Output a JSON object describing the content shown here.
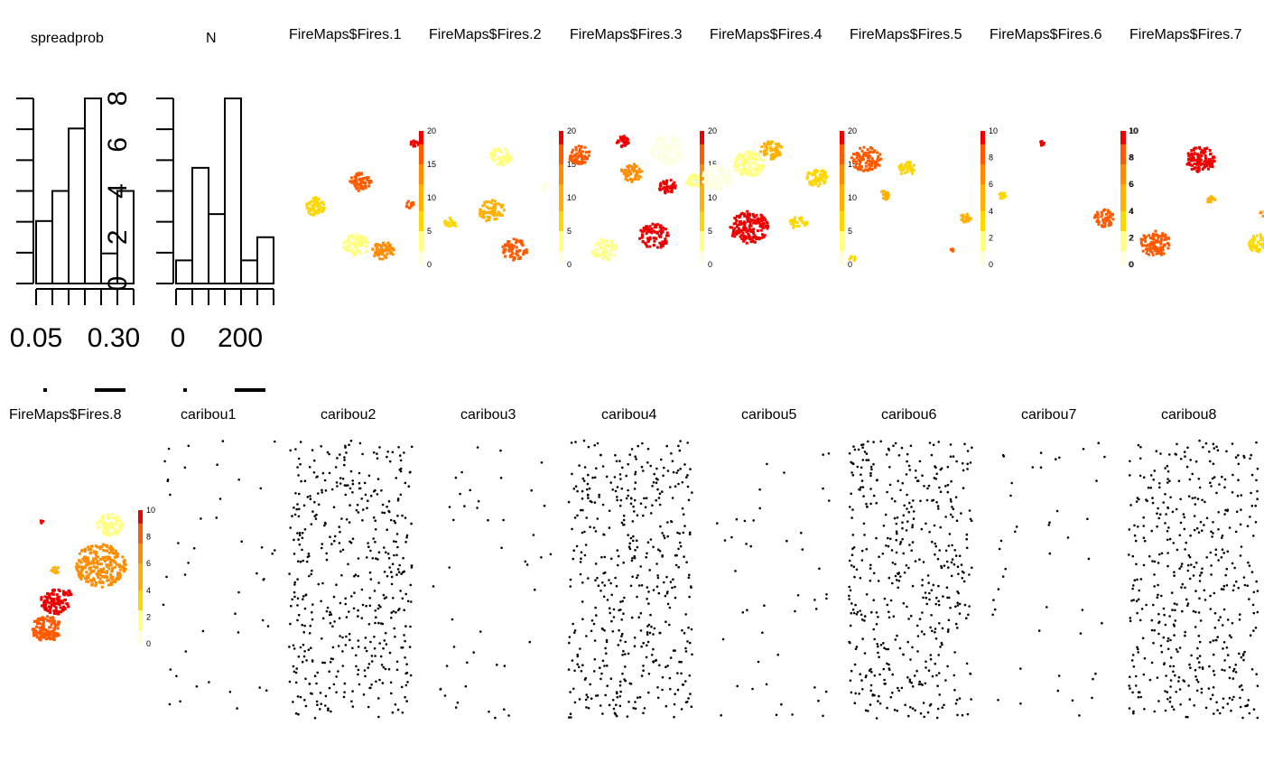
{
  "chart_data": [
    {
      "type": "bar",
      "title": "spreadprob",
      "xticks": [
        "0.05",
        "0.30"
      ],
      "yticks": [
        "0",
        "2",
        "4",
        "6",
        "8"
      ],
      "ylim": [
        0,
        8
      ],
      "values": [
        2.7,
        4,
        6.7,
        8,
        1.3,
        4
      ]
    },
    {
      "type": "bar",
      "title": "N",
      "xticks": [
        "0",
        "200"
      ],
      "yticks": [
        "0",
        "2",
        "4",
        "6",
        "8"
      ],
      "ylim": [
        0,
        8
      ],
      "values": [
        1,
        5,
        3,
        8,
        1,
        2
      ]
    },
    {
      "type": "heatmap",
      "title": "FireMaps$Fires.1",
      "legend_ticks": [
        "0",
        "5",
        "10",
        "15",
        "20"
      ]
    },
    {
      "type": "heatmap",
      "title": "FireMaps$Fires.2",
      "legend_ticks": [
        "0",
        "5",
        "10",
        "15",
        "20"
      ]
    },
    {
      "type": "heatmap",
      "title": "FireMaps$Fires.3",
      "legend_ticks": [
        "0",
        "5",
        "10",
        "15",
        "20"
      ]
    },
    {
      "type": "heatmap",
      "title": "FireMaps$Fires.4",
      "legend_ticks": [
        "0",
        "5",
        "10",
        "15",
        "20"
      ]
    },
    {
      "type": "heatmap",
      "title": "FireMaps$Fires.5",
      "legend_ticks": [
        "0",
        "2",
        "4",
        "6",
        "8",
        "10"
      ]
    },
    {
      "type": "heatmap",
      "title": "FireMaps$Fires.6",
      "legend_ticks": [
        "0",
        "2",
        "4",
        "6",
        "8",
        "10"
      ]
    },
    {
      "type": "heatmap",
      "title": "FireMaps$Fires.7",
      "legend_ticks": [
        "0",
        "2",
        "4",
        "6",
        "8",
        "10"
      ]
    },
    {
      "type": "heatmap",
      "title": "FireMaps$Fires.8",
      "legend_ticks": [
        "0",
        "2",
        "4",
        "6",
        "8",
        "10"
      ]
    },
    {
      "type": "scatter",
      "title": "caribou1"
    },
    {
      "type": "scatter",
      "title": "caribou2"
    },
    {
      "type": "scatter",
      "title": "caribou3"
    },
    {
      "type": "scatter",
      "title": "caribou4"
    },
    {
      "type": "scatter",
      "title": "caribou5"
    },
    {
      "type": "scatter",
      "title": "caribou6"
    },
    {
      "type": "scatter",
      "title": "caribou7"
    },
    {
      "type": "scatter",
      "title": "caribou8"
    }
  ],
  "colors": {
    "fire_low": "#ffffe0",
    "fire_mid": "#ffd700",
    "fire_orange": "#ff8c00",
    "fire_high": "#ee0000",
    "points": "#000000",
    "bars_outline": "#000000"
  }
}
